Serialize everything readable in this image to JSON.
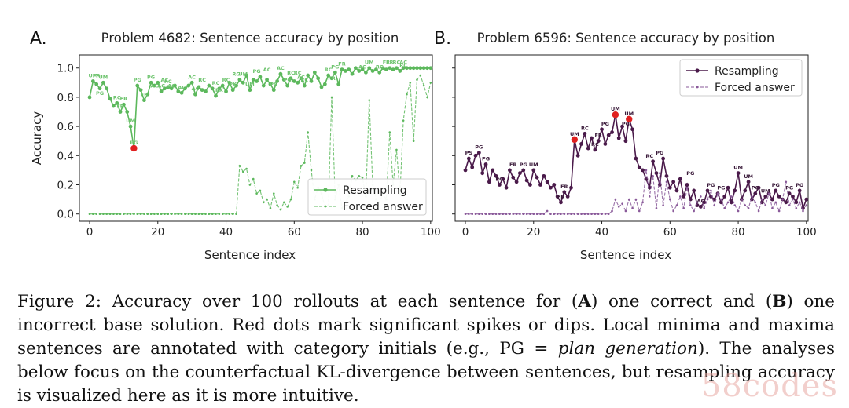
{
  "chart_data": [
    {
      "type": "line",
      "panel_letter": "A.",
      "title": "Problem 4682: Sentence accuracy by position",
      "xlabel": "Sentence index",
      "ylabel": "Accuracy",
      "xlim": [
        0,
        100
      ],
      "ylim": [
        0.0,
        1.0
      ],
      "xticks": [
        "0",
        "20",
        "40",
        "60",
        "80",
        "100"
      ],
      "yticks": [
        "0.0",
        "0.2",
        "0.4",
        "0.6",
        "0.8",
        "1.0"
      ],
      "legend_position": "lower right",
      "series": [
        {
          "name": "Resampling",
          "style": "solid",
          "color": "#5cb85c",
          "values": [
            0.8,
            0.91,
            0.89,
            0.86,
            0.9,
            0.86,
            0.79,
            0.74,
            0.76,
            0.7,
            0.75,
            0.7,
            0.6,
            0.45,
            0.88,
            0.85,
            0.78,
            0.82,
            0.9,
            0.88,
            0.9,
            0.84,
            0.86,
            0.87,
            0.86,
            0.88,
            0.84,
            0.83,
            0.86,
            0.88,
            0.9,
            0.82,
            0.87,
            0.85,
            0.84,
            0.88,
            0.86,
            0.81,
            0.86,
            0.88,
            0.84,
            0.9,
            0.85,
            0.88,
            0.92,
            0.9,
            0.95,
            0.85,
            0.92,
            0.91,
            0.94,
            0.88,
            0.92,
            0.89,
            0.85,
            0.91,
            0.96,
            0.92,
            0.88,
            0.93,
            0.91,
            0.9,
            0.93,
            0.88,
            0.95,
            0.91,
            0.97,
            0.93,
            0.87,
            0.89,
            0.95,
            0.93,
            0.97,
            0.89,
            0.99,
            0.98,
            0.99,
            0.96,
            1.0,
            0.98,
            0.99,
            0.97,
            1.0,
            0.98,
            0.99,
            0.97,
            1.0,
            0.99,
            1.0,
            0.99,
            1.0,
            0.98,
            1.0,
            1.0,
            1.0,
            1.0,
            1.0,
            1.0,
            1.0,
            1.0,
            1.0
          ]
        },
        {
          "name": "Forced answer",
          "style": "dashed",
          "color": "#5cb85c",
          "values": [
            0,
            0,
            0,
            0,
            0,
            0,
            0,
            0,
            0,
            0,
            0,
            0,
            0,
            0,
            0,
            0,
            0,
            0,
            0,
            0,
            0,
            0,
            0,
            0,
            0,
            0,
            0,
            0,
            0,
            0,
            0,
            0,
            0,
            0,
            0,
            0,
            0,
            0,
            0,
            0,
            0,
            0,
            0,
            0,
            0.33,
            0.29,
            0.31,
            0.2,
            0.24,
            0.14,
            0.16,
            0.08,
            0.1,
            0.04,
            0.14,
            0.06,
            0.03,
            0.08,
            0.05,
            0.1,
            0.22,
            0.18,
            0.33,
            0.35,
            0.56,
            0.3,
            0.1,
            0.18,
            0.14,
            0.05,
            0.06,
            0.8,
            0.1,
            0.2,
            0.04,
            0.08,
            0.12,
            0.26,
            0.23,
            0.26,
            0.25,
            0.12,
            0.78,
            0.2,
            0.1,
            0.08,
            0.14,
            0.1,
            0.56,
            0.2,
            0.44,
            0.14,
            0.64,
            0.82,
            0.9,
            0.5,
            0.92,
            0.95,
            0.88,
            0.8,
            0.9
          ]
        }
      ],
      "highlight_points": [
        {
          "x": 13,
          "y": 0.45,
          "color": "#e02020"
        }
      ],
      "annotations": [
        {
          "text": "UM",
          "x": 1,
          "y": 0.91
        },
        {
          "text": "FR",
          "x": 2,
          "y": 0.91
        },
        {
          "text": "UM",
          "x": 4,
          "y": 0.9
        },
        {
          "text": "PG",
          "x": 3,
          "y": 0.79
        },
        {
          "text": "RC",
          "x": 8,
          "y": 0.76
        },
        {
          "text": "FR",
          "x": 10,
          "y": 0.75
        },
        {
          "text": "FR",
          "x": 9,
          "y": 0.7
        },
        {
          "text": "UM",
          "x": 12,
          "y": 0.6
        },
        {
          "text": "PG",
          "x": 13,
          "y": 0.45
        },
        {
          "text": "PG",
          "x": 14,
          "y": 0.88
        },
        {
          "text": "FR",
          "x": 16,
          "y": 0.78
        },
        {
          "text": "PG",
          "x": 18,
          "y": 0.9
        },
        {
          "text": "AC",
          "x": 19,
          "y": 0.84
        },
        {
          "text": "AC",
          "x": 21,
          "y": 0.84
        },
        {
          "text": "AC",
          "x": 22,
          "y": 0.88
        },
        {
          "text": "RC",
          "x": 23,
          "y": 0.87
        },
        {
          "text": "AC",
          "x": 24,
          "y": 0.84
        },
        {
          "text": "AC",
          "x": 27,
          "y": 0.83
        },
        {
          "text": "AC",
          "x": 30,
          "y": 0.9
        },
        {
          "text": "RC",
          "x": 33,
          "y": 0.88
        },
        {
          "text": "AC",
          "x": 31,
          "y": 0.82
        },
        {
          "text": "RC",
          "x": 37,
          "y": 0.86
        },
        {
          "text": "PK",
          "x": 38,
          "y": 0.81
        },
        {
          "text": "RC",
          "x": 40,
          "y": 0.88
        },
        {
          "text": "PK",
          "x": 42,
          "y": 0.85
        },
        {
          "text": "RG",
          "x": 43,
          "y": 0.92
        },
        {
          "text": "UM",
          "x": 45,
          "y": 0.92
        },
        {
          "text": "UM",
          "x": 47,
          "y": 0.85
        },
        {
          "text": "PG",
          "x": 49,
          "y": 0.94
        },
        {
          "text": "AC",
          "x": 52,
          "y": 0.95
        },
        {
          "text": "PG",
          "x": 54,
          "y": 0.85
        },
        {
          "text": "AC",
          "x": 56,
          "y": 0.96
        },
        {
          "text": "RC",
          "x": 59,
          "y": 0.93
        },
        {
          "text": "RC",
          "x": 61,
          "y": 0.93
        },
        {
          "text": "AC",
          "x": 62,
          "y": 0.9
        },
        {
          "text": "PG",
          "x": 58,
          "y": 0.88
        },
        {
          "text": "RC",
          "x": 63,
          "y": 0.88
        },
        {
          "text": "FR",
          "x": 71,
          "y": 0.89
        },
        {
          "text": "RC",
          "x": 70,
          "y": 0.95
        },
        {
          "text": "PG",
          "x": 72,
          "y": 0.97
        },
        {
          "text": "FR",
          "x": 74,
          "y": 0.99
        },
        {
          "text": "AC",
          "x": 80,
          "y": 0.97
        },
        {
          "text": "UM",
          "x": 82,
          "y": 1.0
        },
        {
          "text": "RC",
          "x": 85,
          "y": 0.97
        },
        {
          "text": "FR",
          "x": 87,
          "y": 1.0
        },
        {
          "text": "RC",
          "x": 90,
          "y": 1.0
        },
        {
          "text": "RC",
          "x": 92,
          "y": 0.98
        },
        {
          "text": "FR",
          "x": 88,
          "y": 1.0
        },
        {
          "text": "AC",
          "x": 92,
          "y": 1.0
        }
      ]
    },
    {
      "type": "line",
      "panel_letter": "B.",
      "title": "Problem 6596: Sentence accuracy by position",
      "xlabel": "Sentence index",
      "ylabel": "",
      "xlim": [
        0,
        100
      ],
      "ylim": [
        0.0,
        1.0
      ],
      "xticks": [
        "0",
        "20",
        "40",
        "60",
        "80",
        "100"
      ],
      "yticks": [],
      "legend_position": "upper right",
      "series": [
        {
          "name": "Resampling",
          "style": "solid",
          "color": "#4a1a4a",
          "values": [
            0.3,
            0.38,
            0.32,
            0.4,
            0.42,
            0.28,
            0.34,
            0.22,
            0.3,
            0.26,
            0.2,
            0.24,
            0.18,
            0.3,
            0.25,
            0.22,
            0.28,
            0.3,
            0.23,
            0.2,
            0.3,
            0.25,
            0.2,
            0.26,
            0.22,
            0.18,
            0.2,
            0.12,
            0.08,
            0.15,
            0.12,
            0.18,
            0.51,
            0.4,
            0.48,
            0.55,
            0.45,
            0.52,
            0.44,
            0.5,
            0.58,
            0.48,
            0.54,
            0.56,
            0.68,
            0.52,
            0.6,
            0.5,
            0.65,
            0.58,
            0.38,
            0.32,
            0.3,
            0.24,
            0.18,
            0.36,
            0.28,
            0.2,
            0.38,
            0.26,
            0.18,
            0.22,
            0.16,
            0.24,
            0.12,
            0.2,
            0.1,
            0.16,
            0.06,
            0.05,
            0.08,
            0.16,
            0.12,
            0.1,
            0.14,
            0.08,
            0.12,
            0.18,
            0.08,
            0.16,
            0.28,
            0.1,
            0.16,
            0.22,
            0.1,
            0.14,
            0.18,
            0.08,
            0.12,
            0.14,
            0.1,
            0.16,
            0.12,
            0.1,
            0.08,
            0.14,
            0.12,
            0.08,
            0.16,
            0.04,
            0.1
          ]
        },
        {
          "name": "Forced answer",
          "style": "dashed",
          "color": "#8a5a9a",
          "values": [
            0,
            0,
            0,
            0,
            0,
            0,
            0,
            0,
            0,
            0,
            0,
            0,
            0,
            0,
            0,
            0,
            0,
            0,
            0,
            0,
            0,
            0,
            0,
            0,
            0.02,
            0,
            0,
            0,
            0,
            0,
            0,
            0,
            0,
            0,
            0,
            0,
            0,
            0,
            0,
            0,
            0,
            0,
            0,
            0.02,
            0.1,
            0.05,
            0.07,
            0.02,
            0.1,
            0.04,
            0.1,
            0.02,
            0.08,
            0.3,
            0.12,
            0.26,
            0.04,
            0.28,
            0.06,
            0.22,
            0.1,
            0.02,
            0.06,
            0.12,
            0.04,
            0.18,
            0.06,
            0.02,
            0.08,
            0.12,
            0.04,
            0.1,
            0.16,
            0.06,
            0.14,
            0.1,
            0.04,
            0.08,
            0.12,
            0.06,
            0.02,
            0.1,
            0.06,
            0.04,
            0.12,
            0.08,
            0.02,
            0.1,
            0.06,
            0.14,
            0.04,
            0.08,
            0.02,
            0.1,
            0.22,
            0.06,
            0.1,
            0.04,
            0.08,
            0.02,
            0.06
          ]
        }
      ],
      "highlight_points": [
        {
          "x": 32,
          "y": 0.51,
          "color": "#e02020"
        },
        {
          "x": 44,
          "y": 0.68,
          "color": "#e02020"
        },
        {
          "x": 48,
          "y": 0.65,
          "color": "#e02020"
        }
      ],
      "annotations": [
        {
          "text": "PS",
          "x": 1,
          "y": 0.38
        },
        {
          "text": "PG",
          "x": 4,
          "y": 0.42
        },
        {
          "text": "PG",
          "x": 6,
          "y": 0.34
        },
        {
          "text": "PG",
          "x": 10,
          "y": 0.2
        },
        {
          "text": "FR",
          "x": 14,
          "y": 0.3
        },
        {
          "text": "UM",
          "x": 20,
          "y": 0.3
        },
        {
          "text": "PG",
          "x": 17,
          "y": 0.3
        },
        {
          "text": "FR",
          "x": 28,
          "y": 0.08
        },
        {
          "text": "FR",
          "x": 29,
          "y": 0.15
        },
        {
          "text": "UM",
          "x": 32,
          "y": 0.51
        },
        {
          "text": "RC",
          "x": 35,
          "y": 0.55
        },
        {
          "text": "RC",
          "x": 38,
          "y": 0.44
        },
        {
          "text": "FR",
          "x": 39,
          "y": 0.5
        },
        {
          "text": "PG",
          "x": 41,
          "y": 0.58
        },
        {
          "text": "UM",
          "x": 44,
          "y": 0.68
        },
        {
          "text": "PG",
          "x": 47,
          "y": 0.58
        },
        {
          "text": "UM",
          "x": 48,
          "y": 0.65
        },
        {
          "text": "RC",
          "x": 54,
          "y": 0.36
        },
        {
          "text": "PG",
          "x": 57,
          "y": 0.38
        },
        {
          "text": "PG",
          "x": 66,
          "y": 0.24
        },
        {
          "text": "AC",
          "x": 69,
          "y": 0.05
        },
        {
          "text": "PG",
          "x": 72,
          "y": 0.16
        },
        {
          "text": "PG",
          "x": 75,
          "y": 0.14
        },
        {
          "text": "UM",
          "x": 80,
          "y": 0.28
        },
        {
          "text": "UM",
          "x": 83,
          "y": 0.22
        },
        {
          "text": "PG",
          "x": 85,
          "y": 0.14
        },
        {
          "text": "UM",
          "x": 88,
          "y": 0.12
        },
        {
          "text": "PG",
          "x": 91,
          "y": 0.16
        },
        {
          "text": "PG",
          "x": 95,
          "y": 0.14
        },
        {
          "text": "PG",
          "x": 98,
          "y": 0.16
        }
      ]
    }
  ],
  "caption": {
    "prefix": "Figure 2: Accuracy over 100 rollouts at each sentence for (",
    "letter_a": "A",
    "mid1": ") one correct and (",
    "letter_b": "B",
    "mid2": ") one incorrect base solution. Red dots mark significant spikes or dips. Local minima and maxima sentences are annotated with category initials (e.g., PG = ",
    "italic": "plan generation",
    "suffix": "). The analyses below focus on the counterfactual KL-divergence between sentences, but resampling accuracy is visualized here as it is more intuitive."
  },
  "watermark": "58codes"
}
